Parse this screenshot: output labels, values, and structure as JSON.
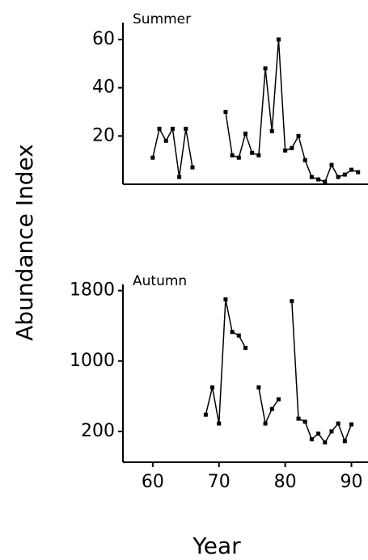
{
  "chart_data": [
    {
      "type": "line",
      "title": "Summer",
      "x": [
        60,
        61,
        62,
        63,
        64,
        65,
        66,
        67,
        71,
        72,
        73,
        74,
        75,
        76,
        77,
        78,
        79,
        80,
        81,
        82,
        83,
        84,
        85,
        86,
        87,
        88,
        89,
        90,
        91
      ],
      "series": [
        {
          "name": "Summer",
          "color": "#000000",
          "values": [
            11,
            23,
            18,
            23,
            3,
            23,
            7,
            null,
            30,
            12,
            11,
            21,
            13,
            12,
            48,
            22,
            60,
            14,
            15,
            20,
            10,
            3,
            2,
            1,
            8,
            3,
            4,
            6,
            5
          ]
        }
      ],
      "xlim": [
        55.5,
        92.5
      ],
      "ylim": [
        0,
        67
      ],
      "yticks": [
        20,
        40,
        60
      ]
    },
    {
      "type": "line",
      "title": "Autumn",
      "x": [
        68,
        69,
        70,
        71,
        72,
        73,
        74,
        75,
        76,
        77,
        78,
        79,
        80,
        81,
        82,
        83,
        84,
        85,
        86,
        87,
        88,
        89,
        90
      ],
      "series": [
        {
          "name": "Autumn",
          "color": "#000000",
          "values": [
            390,
            700,
            290,
            1700,
            1330,
            1290,
            1150,
            null,
            700,
            290,
            455,
            565,
            null,
            1680,
            345,
            310,
            110,
            175,
            75,
            200,
            290,
            90,
            280
          ]
        }
      ],
      "xlim": [
        55.5,
        92.5
      ],
      "ylim": [
        -150,
        1870
      ],
      "yticks": [
        200,
        1000,
        1800
      ],
      "xticks": [
        60,
        70,
        80,
        90
      ],
      "xlabel": "Year",
      "ylabel": "Abundance Index"
    }
  ]
}
